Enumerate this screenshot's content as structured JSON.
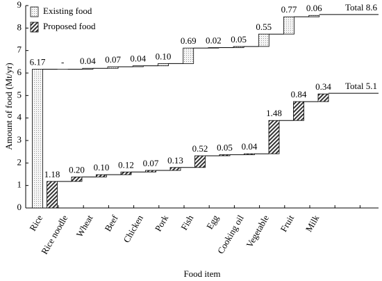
{
  "chart_data": {
    "type": "waterfall",
    "ylabel": "Amount of food (Mt/yr)",
    "xlabel": "Food item",
    "categories": [
      "Rice",
      "Rice noodle",
      "Wheat",
      "Beef",
      "Chicken",
      "Pork",
      "Fish",
      "Egg",
      "Cooking oil",
      "Vegetable",
      "Fruit",
      "Milk"
    ],
    "ylim": [
      0,
      9
    ],
    "yticks": [
      0,
      1,
      2,
      3,
      4,
      5,
      6,
      7,
      8,
      9
    ],
    "legend": "upper left",
    "series": [
      {
        "name": "Existing food",
        "pattern": "dots",
        "color": "#eeeeee",
        "values": [
          6.17,
          0,
          0.04,
          0.07,
          0.04,
          0.1,
          0.69,
          0.02,
          0.05,
          0.55,
          0.77,
          0.06
        ],
        "value_labels": [
          "6.17",
          "-",
          "0.04",
          "0.07",
          "0.04",
          "0.10",
          "0.69",
          "0.02",
          "0.05",
          "0.55",
          "0.77",
          "0.06"
        ],
        "total": 8.6,
        "total_label": "Total 8.6"
      },
      {
        "name": "Proposed food",
        "pattern": "hatch",
        "color": "#333333",
        "values": [
          1.18,
          0.2,
          0.1,
          0.12,
          0.07,
          0.13,
          0.52,
          0.05,
          0.04,
          1.48,
          0.84,
          0.34
        ],
        "value_labels": [
          "1.18",
          "0.20",
          "0.10",
          "0.12",
          "0.07",
          "0.13",
          "0.52",
          "0.05",
          "0.04",
          "1.48",
          "0.84",
          "0.34"
        ],
        "total": 5.1,
        "total_label": "Total 5.1"
      }
    ]
  }
}
